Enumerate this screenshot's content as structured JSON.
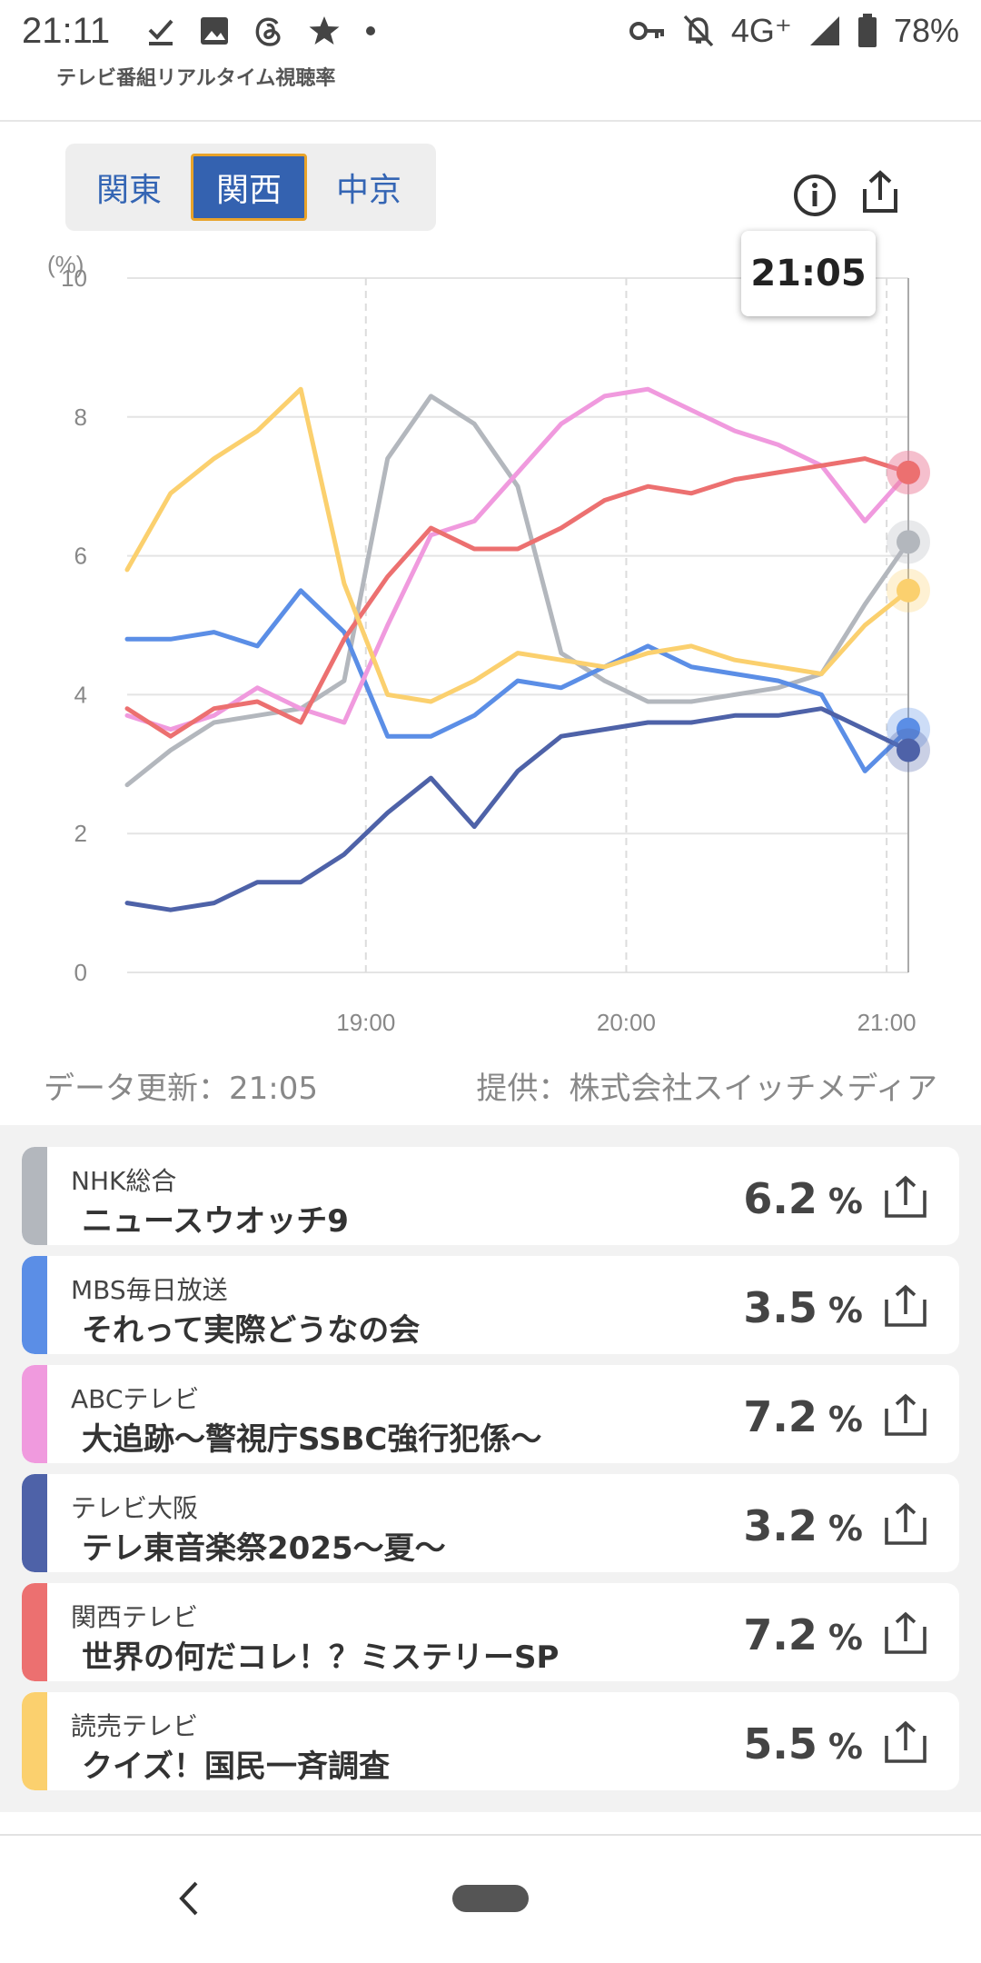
{
  "status_bar": {
    "time": "21:11",
    "network": "4G⁺",
    "battery": "78%"
  },
  "app": {
    "label": "テレビ番組リアルタイム視聴率"
  },
  "region_tabs": [
    {
      "label": "関東",
      "active": false
    },
    {
      "label": "関西",
      "active": true
    },
    {
      "label": "中京",
      "active": false
    }
  ],
  "tooltip": {
    "time": "21:05"
  },
  "footer_meta": {
    "updated": "データ更新：21:05",
    "provider": "提供：株式会社スイッチメディア"
  },
  "chart_data": {
    "type": "line",
    "ylabel": "(%)",
    "ylim": [
      0,
      10
    ],
    "y_ticks": [
      "0",
      "2",
      "4",
      "6",
      "8",
      "10"
    ],
    "x_ticks": [
      "19:00",
      "20:00",
      "21:00"
    ],
    "x_range": [
      "18:05",
      "21:05"
    ],
    "grid": true,
    "series": [
      {
        "name": "NHK総合",
        "color": "#b3b7bd",
        "x": [
          "18:05",
          "18:15",
          "18:25",
          "18:35",
          "18:45",
          "18:55",
          "19:05",
          "19:15",
          "19:25",
          "19:35",
          "19:45",
          "19:55",
          "20:05",
          "20:15",
          "20:25",
          "20:35",
          "20:45",
          "20:55",
          "21:05"
        ],
        "values": [
          2.7,
          3.2,
          3.6,
          3.7,
          3.8,
          4.2,
          7.4,
          8.3,
          7.9,
          7.0,
          4.6,
          4.2,
          3.9,
          3.9,
          4.0,
          4.1,
          4.3,
          5.3,
          6.2
        ]
      },
      {
        "name": "MBS毎日放送",
        "color": "#5b8ee6",
        "x": [
          "18:05",
          "18:15",
          "18:25",
          "18:35",
          "18:45",
          "18:55",
          "19:05",
          "19:15",
          "19:25",
          "19:35",
          "19:45",
          "19:55",
          "20:05",
          "20:15",
          "20:25",
          "20:35",
          "20:45",
          "20:55",
          "21:05"
        ],
        "values": [
          4.8,
          4.8,
          4.9,
          4.7,
          5.5,
          4.9,
          3.4,
          3.4,
          3.7,
          4.2,
          4.1,
          4.4,
          4.7,
          4.4,
          4.3,
          4.2,
          4.0,
          2.9,
          3.5
        ]
      },
      {
        "name": "ABCテレビ",
        "color": "#f09ade",
        "x": [
          "18:05",
          "18:15",
          "18:25",
          "18:35",
          "18:45",
          "18:55",
          "19:05",
          "19:15",
          "19:25",
          "19:35",
          "19:45",
          "19:55",
          "20:05",
          "20:15",
          "20:25",
          "20:35",
          "20:45",
          "20:55",
          "21:05"
        ],
        "values": [
          3.7,
          3.5,
          3.7,
          4.1,
          3.8,
          3.6,
          5.0,
          6.3,
          6.5,
          7.2,
          7.9,
          8.3,
          8.4,
          8.1,
          7.8,
          7.6,
          7.3,
          6.5,
          7.2
        ]
      },
      {
        "name": "テレビ大阪",
        "color": "#4e62a8",
        "x": [
          "18:05",
          "18:15",
          "18:25",
          "18:35",
          "18:45",
          "18:55",
          "19:05",
          "19:15",
          "19:25",
          "19:35",
          "19:45",
          "19:55",
          "20:05",
          "20:15",
          "20:25",
          "20:35",
          "20:45",
          "20:55",
          "21:05"
        ],
        "values": [
          1.0,
          0.9,
          1.0,
          1.3,
          1.3,
          1.7,
          2.3,
          2.8,
          2.1,
          2.9,
          3.4,
          3.5,
          3.6,
          3.6,
          3.7,
          3.7,
          3.8,
          3.5,
          3.2
        ]
      },
      {
        "name": "関西テレビ",
        "color": "#ec7070",
        "x": [
          "18:05",
          "18:15",
          "18:25",
          "18:35",
          "18:45",
          "18:55",
          "19:05",
          "19:15",
          "19:25",
          "19:35",
          "19:45",
          "19:55",
          "20:05",
          "20:15",
          "20:25",
          "20:35",
          "20:45",
          "20:55",
          "21:05"
        ],
        "values": [
          3.8,
          3.4,
          3.8,
          3.9,
          3.6,
          4.8,
          5.7,
          6.4,
          6.1,
          6.1,
          6.4,
          6.8,
          7.0,
          6.9,
          7.1,
          7.2,
          7.3,
          7.4,
          7.2
        ]
      },
      {
        "name": "読売テレビ",
        "color": "#fbd06e",
        "x": [
          "18:05",
          "18:15",
          "18:25",
          "18:35",
          "18:45",
          "18:55",
          "19:05",
          "19:15",
          "19:25",
          "19:35",
          "19:45",
          "19:55",
          "20:05",
          "20:15",
          "20:25",
          "20:35",
          "20:45",
          "20:55",
          "21:05"
        ],
        "values": [
          5.8,
          6.9,
          7.4,
          7.8,
          8.4,
          5.6,
          4.0,
          3.9,
          4.2,
          4.6,
          4.5,
          4.4,
          4.6,
          4.7,
          4.5,
          4.4,
          4.3,
          5.0,
          5.5
        ]
      }
    ]
  },
  "programs": [
    {
      "channel": "NHK総合",
      "title": "ニュースウオッチ9",
      "rating": "6.2",
      "unit": "%",
      "color": "#b3b7bd"
    },
    {
      "channel": "MBS毎日放送",
      "title": "それって実際どうなの会",
      "rating": "3.5",
      "unit": "%",
      "color": "#5b8ee6"
    },
    {
      "channel": "ABCテレビ",
      "title": "大追跡～警視庁SSBC強行犯係～",
      "rating": "7.2",
      "unit": "%",
      "color": "#f09ade"
    },
    {
      "channel": "テレビ大阪",
      "title": "テレ東音楽祭2025～夏～",
      "rating": "3.2",
      "unit": "%",
      "color": "#4e62a8"
    },
    {
      "channel": "関西テレビ",
      "title": "世界の何だコレ！？ミステリーSP",
      "rating": "7.2",
      "unit": "%",
      "color": "#ec7070"
    },
    {
      "channel": "読売テレビ",
      "title": "クイズ！国民一斉調査",
      "rating": "5.5",
      "unit": "%",
      "color": "#fbd06e"
    }
  ]
}
